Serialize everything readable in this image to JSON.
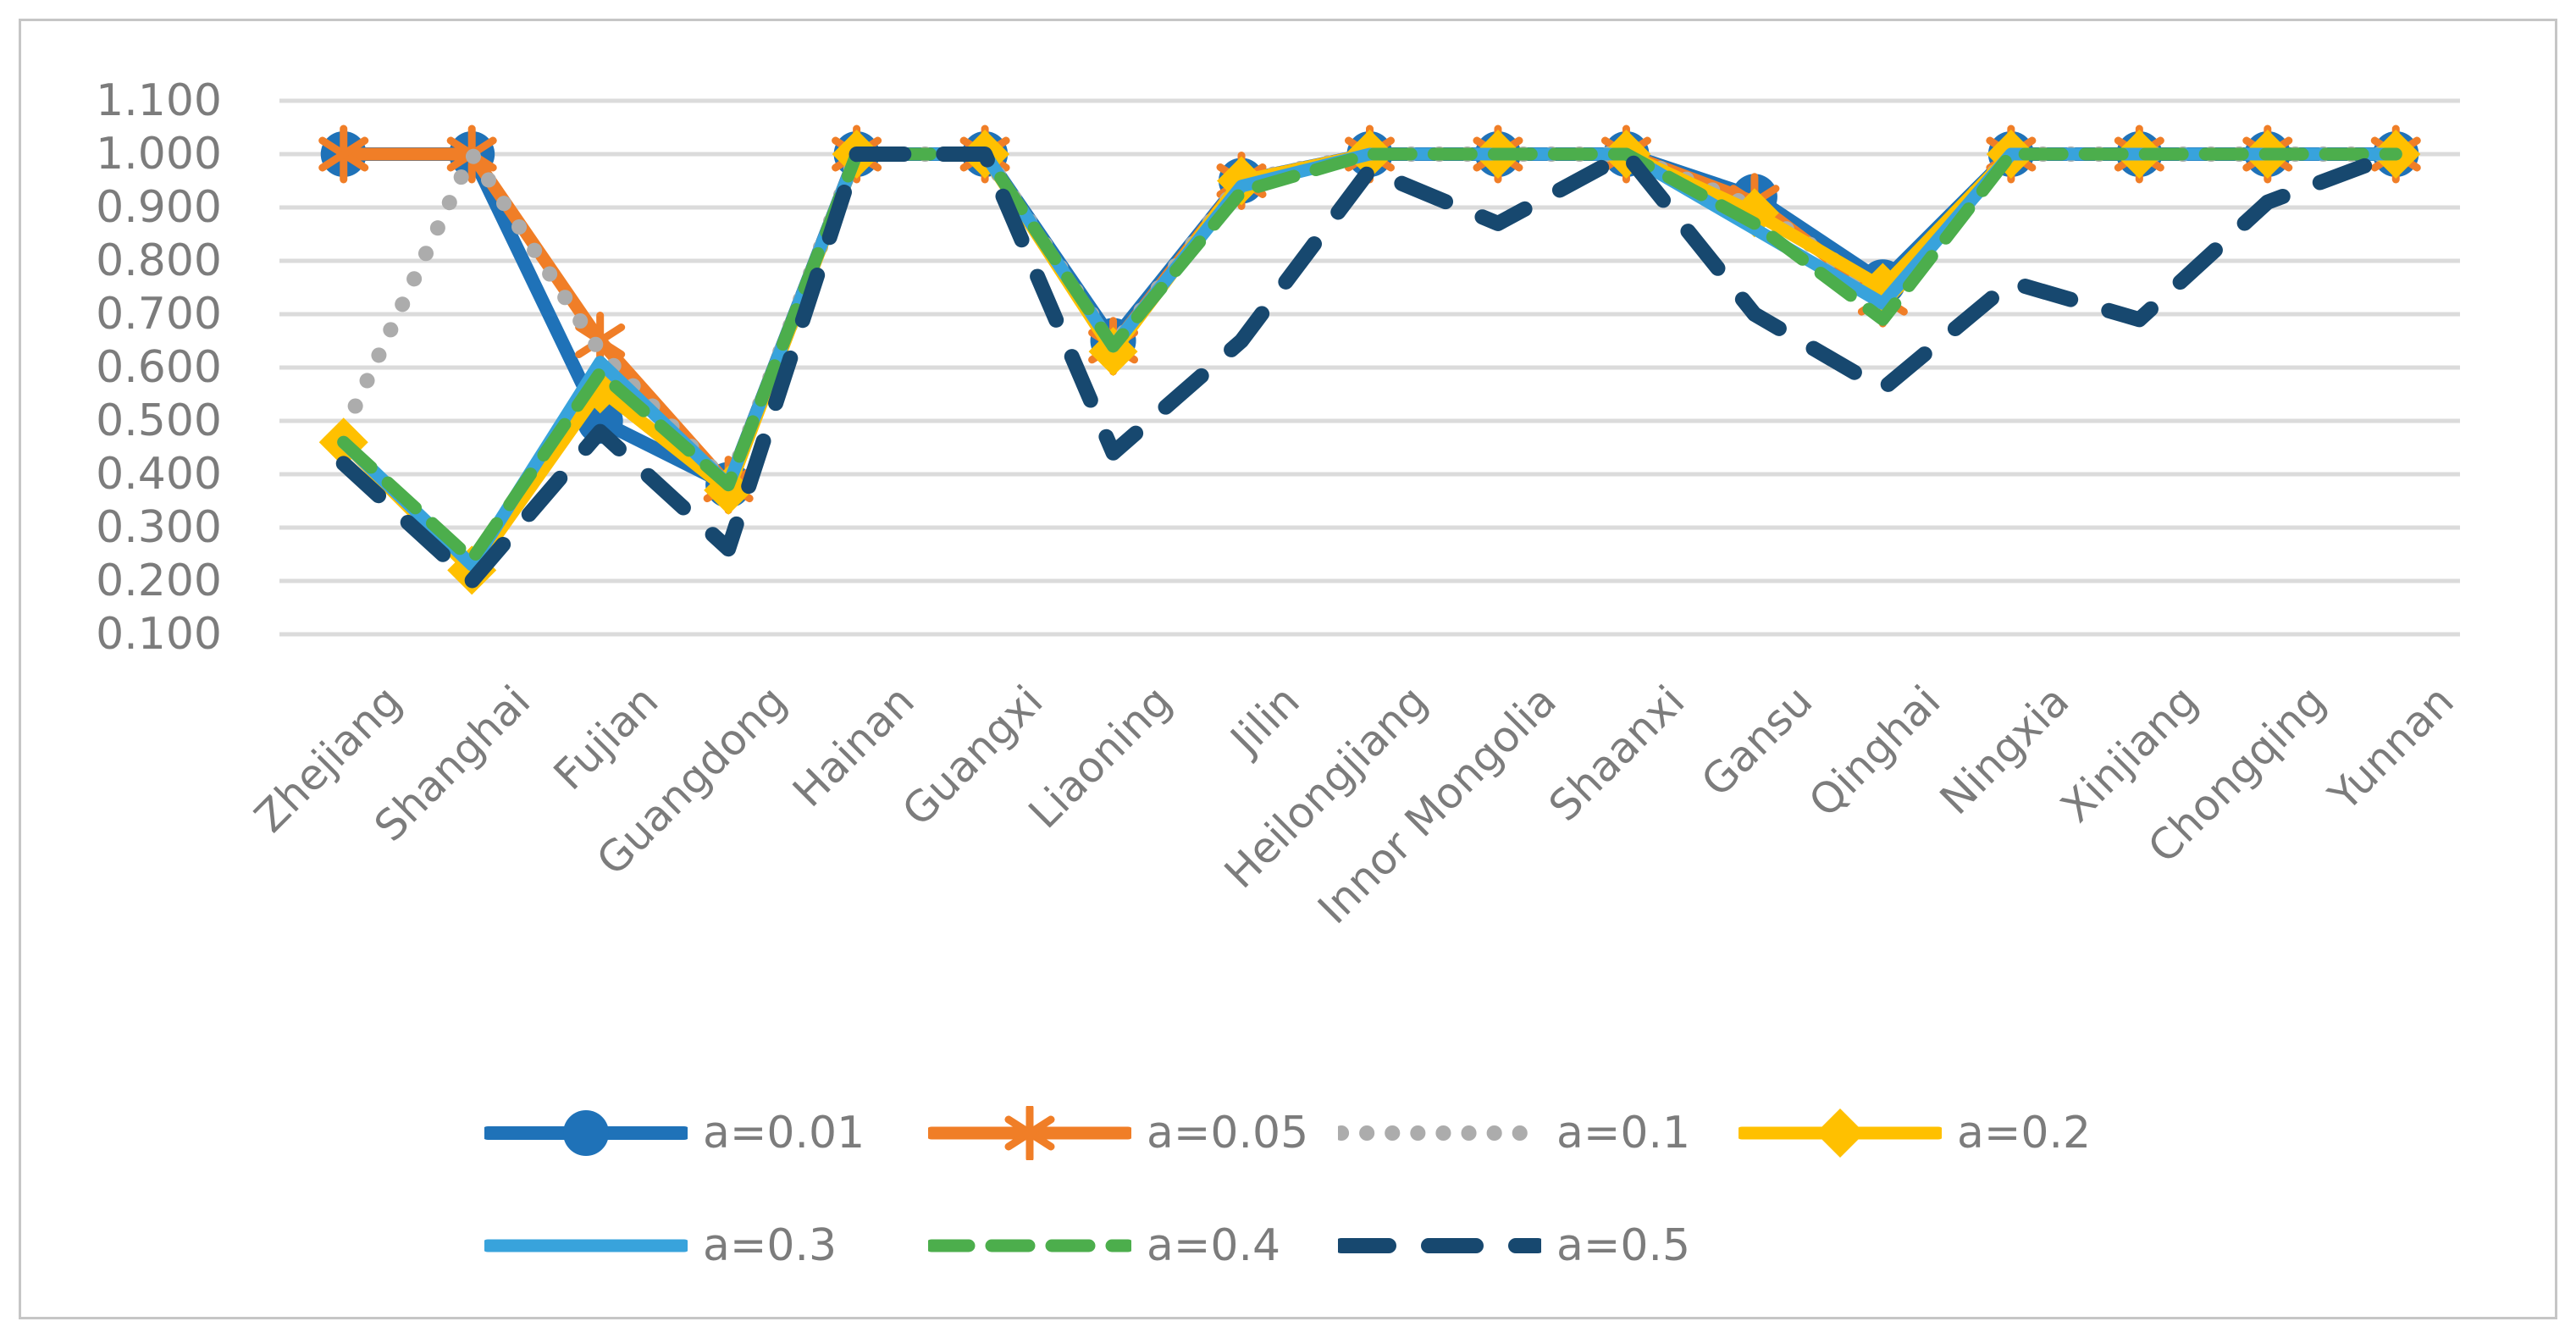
{
  "chart_data": {
    "type": "line",
    "title": "",
    "xlabel": "",
    "ylabel": "",
    "ylim": [
      0.1,
      1.1
    ],
    "grid": true,
    "legend_position": "bottom",
    "gridline_color": "#DBDBDB",
    "axis_text_color": "#7C7C7C",
    "y_ticks": [
      "1.100",
      "1.000",
      "0.900",
      "0.800",
      "0.700",
      "0.600",
      "0.500",
      "0.400",
      "0.300",
      "0.200",
      "0.100"
    ],
    "categories": [
      "Zhejiang",
      "Shanghai",
      "Fujian",
      "Guangdong",
      "Hainan",
      "Guangxi",
      "Liaoning",
      "Jilin",
      "Heilongjiang",
      "Innor Mongolia",
      "Shaanxi",
      "Gansu",
      "Qinghai",
      "Ningxia",
      "Xinjiang",
      "Chongqing",
      "Yunnan"
    ],
    "series": [
      {
        "name": "a=0.01",
        "color": "#1F72B8",
        "style": "solid",
        "marker": "circle",
        "values": [
          1.0,
          1.0,
          0.5,
          0.38,
          1.0,
          1.0,
          0.65,
          0.95,
          1.0,
          1.0,
          1.0,
          0.92,
          0.76,
          1.0,
          1.0,
          1.0,
          1.0
        ]
      },
      {
        "name": "a=0.05",
        "color": "#F07E27",
        "style": "solid",
        "marker": "asterisk",
        "values": [
          1.0,
          1.0,
          0.65,
          0.38,
          1.0,
          1.0,
          0.64,
          0.95,
          1.0,
          1.0,
          1.0,
          0.91,
          0.73,
          1.0,
          1.0,
          1.0,
          1.0
        ]
      },
      {
        "name": "a=0.1",
        "color": "#ACACAC",
        "style": "dotted",
        "marker": "none",
        "values": [
          0.48,
          1.0,
          0.63,
          0.38,
          1.0,
          1.0,
          0.64,
          0.95,
          1.0,
          1.0,
          1.0,
          0.9,
          0.74,
          1.0,
          1.0,
          1.0,
          1.0
        ]
      },
      {
        "name": "a=0.2",
        "color": "#FFC000",
        "style": "solid",
        "marker": "diamond",
        "values": [
          0.46,
          0.22,
          0.56,
          0.37,
          1.0,
          1.0,
          0.63,
          0.95,
          1.0,
          1.0,
          1.0,
          0.89,
          0.75,
          1.0,
          1.0,
          1.0,
          1.0
        ]
      },
      {
        "name": "a=0.3",
        "color": "#38A3DC",
        "style": "solid",
        "marker": "none",
        "values": [
          0.46,
          0.23,
          0.61,
          0.38,
          1.0,
          1.0,
          0.64,
          0.94,
          1.0,
          1.0,
          1.0,
          0.86,
          0.72,
          1.0,
          1.0,
          1.0,
          1.0
        ]
      },
      {
        "name": "a=0.4",
        "color": "#4CAE4C",
        "style": "dashed",
        "marker": "none",
        "values": [
          0.46,
          0.24,
          0.59,
          0.38,
          1.0,
          1.0,
          0.64,
          0.93,
          1.0,
          1.0,
          1.0,
          0.87,
          0.69,
          1.0,
          1.0,
          1.0,
          1.0
        ]
      },
      {
        "name": "a=0.5",
        "color": "#17486F",
        "style": "long-dash",
        "marker": "none",
        "values": [
          0.42,
          0.2,
          0.48,
          0.26,
          1.0,
          1.0,
          0.44,
          0.65,
          0.97,
          0.87,
          1.0,
          0.7,
          0.56,
          0.76,
          0.69,
          0.91,
          1.0
        ]
      }
    ]
  }
}
